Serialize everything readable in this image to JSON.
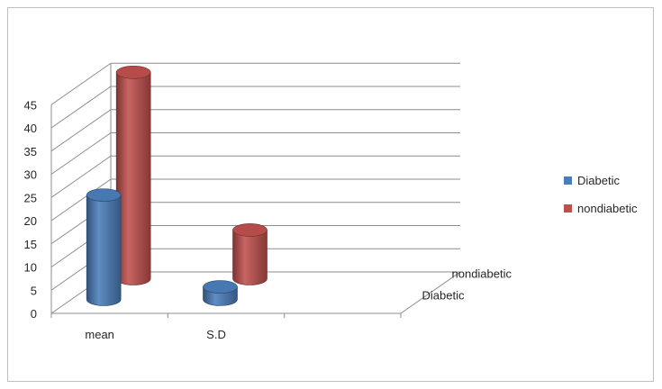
{
  "chart_data": {
    "type": "bar",
    "style": "3d-cylinder",
    "categories": [
      "mean",
      "S.D",
      ""
    ],
    "series": [
      {
        "name": "Diabetic",
        "values": [
          22.5,
          2.7,
          null
        ],
        "color": "#4a7ebb"
      },
      {
        "name": "nondiabetic",
        "values": [
          44.5,
          10.5,
          null
        ],
        "color": "#c0504d"
      }
    ],
    "ylim": [
      0,
      45
    ],
    "yticks": [
      "0",
      "5",
      "10",
      "15",
      "20",
      "25",
      "30",
      "35",
      "40",
      "45"
    ],
    "depth_labels": [
      "Diabetic",
      "nondiabetic"
    ],
    "grid": true,
    "legend_position": "right"
  }
}
